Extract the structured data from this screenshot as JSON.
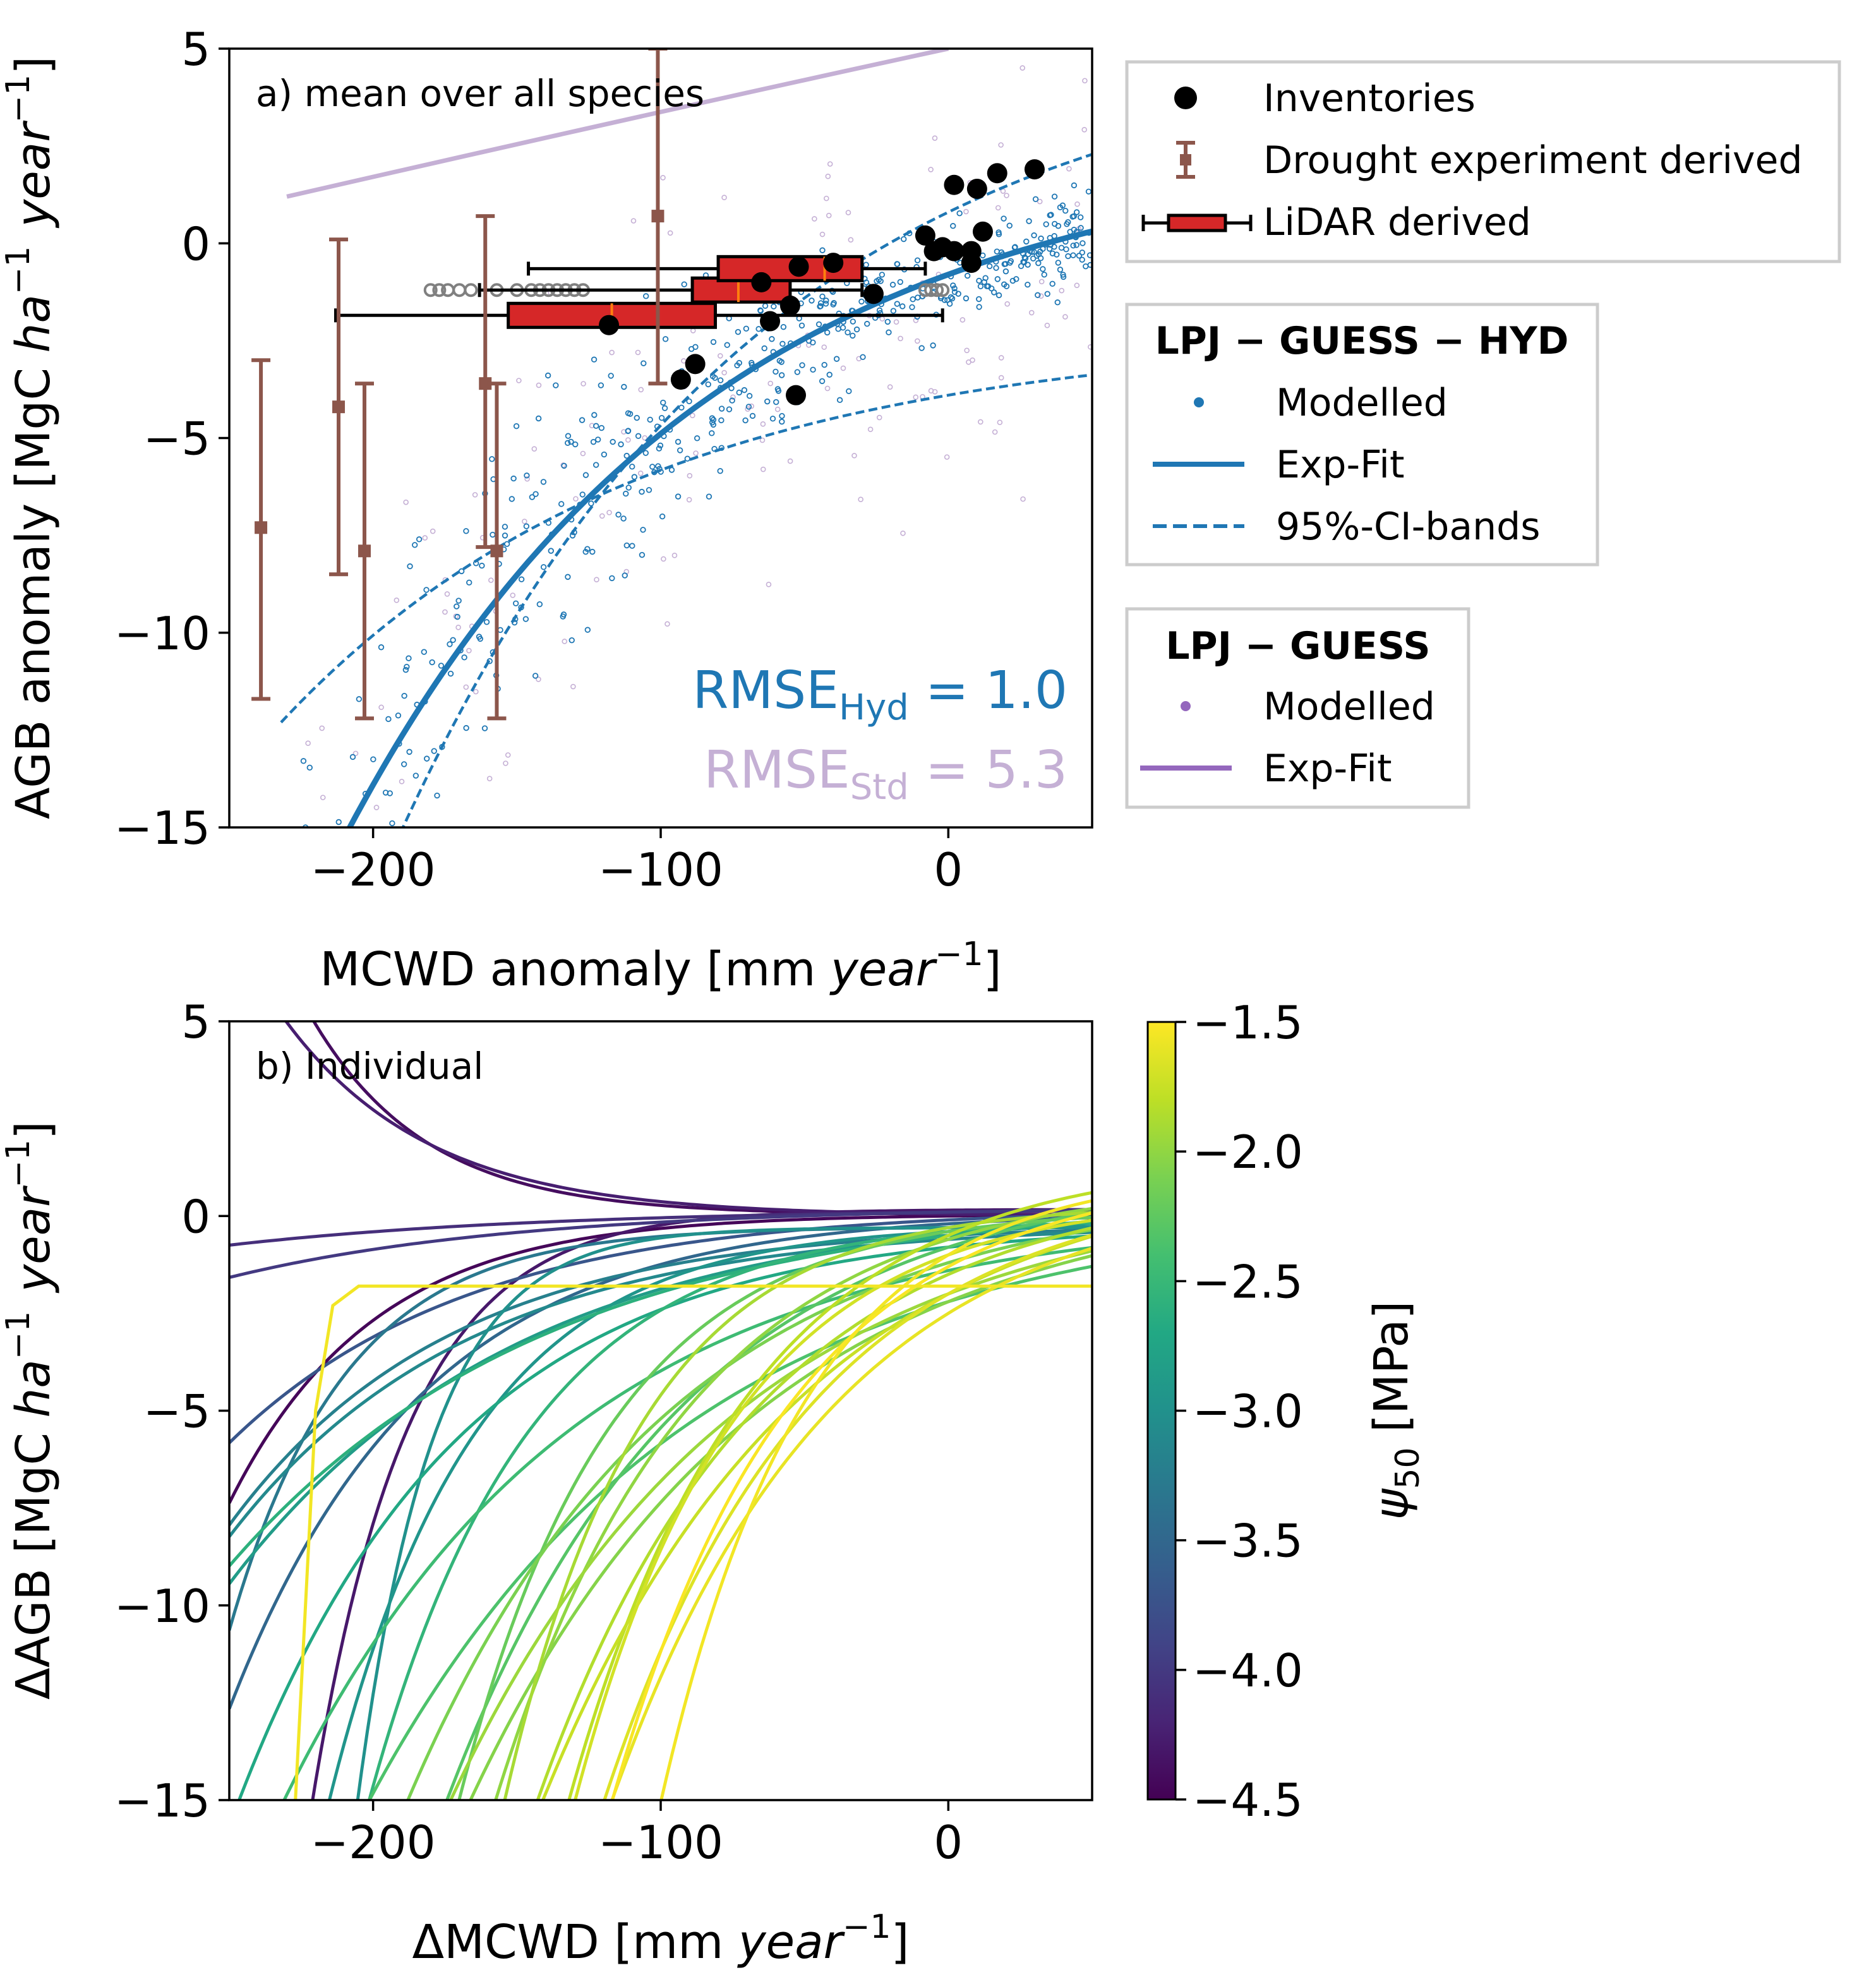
{
  "chart_data": [
    {
      "type": "scatter",
      "panel_title": "a)  mean over all species",
      "xlabel_main": "MCWD anomaly [mm ",
      "xlabel_italic": "year",
      "xlabel_sup": "−1",
      "xlabel_end": "]",
      "ylabel_main": "AGB anomaly [MgC ",
      "ylabel_italic": "ha",
      "ylabel_sup": "−1",
      "ylabel_italic2": "year",
      "ylabel_sup2": "−1",
      "ylabel_end": "]",
      "xlim": [
        -250,
        50
      ],
      "ylim": [
        -15,
        5
      ],
      "xticks": [
        "−200",
        "−100",
        "0"
      ],
      "yticks": [
        "5",
        "0",
        "−5",
        "−10",
        "−15"
      ],
      "legend_position": "right outside",
      "inventories": [
        [
          -118,
          -2.1
        ],
        [
          -93,
          -3.5
        ],
        [
          -88,
          -3.1
        ],
        [
          -65,
          -1.0
        ],
        [
          -62,
          -2.0
        ],
        [
          -55,
          -1.6
        ],
        [
          -53,
          -3.9
        ],
        [
          -52,
          -0.6
        ],
        [
          -40,
          -0.5
        ],
        [
          -26,
          -1.3
        ],
        [
          -8,
          0.2
        ],
        [
          -5,
          -0.2
        ],
        [
          -2,
          -0.1
        ],
        [
          2,
          1.5
        ],
        [
          2,
          -0.2
        ],
        [
          8,
          -0.2
        ],
        [
          8,
          -0.5
        ],
        [
          10,
          1.4
        ],
        [
          12,
          0.3
        ],
        [
          17,
          1.8
        ],
        [
          30,
          1.9
        ]
      ],
      "drought_experiments": [
        {
          "x": -239,
          "mean": -7.3,
          "low": -11.7,
          "high": -3.0
        },
        {
          "x": -212,
          "mean": -4.2,
          "low": -8.5,
          "high": 0.1
        },
        {
          "x": -203,
          "mean": -7.9,
          "low": -12.2,
          "high": -3.6
        },
        {
          "x": -161,
          "mean": -3.6,
          "low": -7.8,
          "high": 0.7
        },
        {
          "x": -157,
          "mean": -7.9,
          "low": -12.2,
          "high": -3.6
        },
        {
          "x": -101,
          "mean": 0.7,
          "low": -3.6,
          "high": 5.0
        }
      ],
      "lidar_boxes": [
        {
          "whisker_low": -213,
          "q1": -153,
          "median": -117,
          "q3": -81,
          "whisker_high": -2,
          "y": -1.85
        },
        {
          "whisker_low": -163,
          "q1": -89,
          "median": -73,
          "q3": -55,
          "whisker_high": -30,
          "y": -1.2
        },
        {
          "whisker_low": -146,
          "q1": -80,
          "median": -43,
          "q3": -30,
          "whisker_high": -8,
          "y": -0.65
        }
      ],
      "lidar_outliers": [
        [
          -180,
          -1.2
        ],
        [
          -177,
          -1.2
        ],
        [
          -174,
          -1.2
        ],
        [
          -170,
          -1.2
        ],
        [
          -166,
          -1.2
        ],
        [
          -157,
          -1.2
        ],
        [
          -150,
          -1.2
        ],
        [
          -145,
          -1.2
        ],
        [
          -142,
          -1.2
        ],
        [
          -139,
          -1.2
        ],
        [
          -136,
          -1.2
        ],
        [
          -133,
          -1.2
        ],
        [
          -130,
          -1.2
        ],
        [
          -127,
          -1.2
        ],
        [
          -8,
          -1.2
        ],
        [
          -6,
          -1.2
        ],
        [
          -4,
          -1.2
        ],
        [
          -2,
          -1.2
        ]
      ],
      "series": [
        {
          "name": "Exp-Fit",
          "model": "LPJ−GUESS−HYD",
          "a": 2.55,
          "b": -0.00935,
          "c": -2.25,
          "x_range": [
            -232,
            50
          ],
          "color": "#1f77b4",
          "style": "solid"
        },
        {
          "name": "95%-CI-bands",
          "model": "LPJ−GUESS−HYD",
          "x_range": [
            -232,
            50
          ],
          "upper": {
            "a": 3.5,
            "b": -0.008,
            "c": 1.2
          },
          "lower": {
            "a": 2.0,
            "b": -0.0085,
            "c": -5.1
          },
          "color": "#1f77b4",
          "style": "dashed"
        },
        {
          "name": "Exp-Fit",
          "model": "LPJ−GUESS",
          "x": [
            -230,
            -100,
            0
          ],
          "y": [
            1.2,
            3.5,
            5.0
          ],
          "color": "#9467bd",
          "style": "solid"
        }
      ],
      "rmse_hyd_label": "RMSE",
      "rmse_hyd_sub": "Hyd",
      "rmse_hyd_value": " = 1.0",
      "rmse_std_label": "RMSE",
      "rmse_std_sub": "Std",
      "rmse_std_value": " = 5.3"
    },
    {
      "type": "line",
      "panel_title": "b)  Individual",
      "xlabel_main": "ΔMCWD [mm ",
      "xlabel_italic": "year",
      "xlabel_sup": "−1",
      "xlabel_end": "]",
      "ylabel_main": "ΔAGB [MgC ",
      "ylabel_italic": "ha",
      "ylabel_sup": "−1",
      "ylabel_italic2": "year",
      "ylabel_sup2": "−1",
      "ylabel_end": "]",
      "xlim": [
        -250,
        50
      ],
      "ylim": [
        -15,
        5
      ],
      "xticks": [
        "−200",
        "−100",
        "0"
      ],
      "yticks": [
        "5",
        "0",
        "−5",
        "−10",
        "−15"
      ],
      "colorbar": {
        "label": "ψ",
        "label_sub": "50",
        "label_unit": " [MPa]",
        "range": [
          -4.5,
          -1.5
        ],
        "ticks": [
          "−1.5",
          "−2.0",
          "−2.5",
          "−3.0",
          "−3.5",
          "−4.0",
          "−4.5"
        ],
        "colormap": "viridis"
      },
      "curves": [
        {
          "psi50": -4.45,
          "a": 0.05,
          "b": -0.02,
          "c": 0.0
        },
        {
          "psi50": -4.4,
          "a": -0.02,
          "b": -0.025,
          "c": 0.05
        },
        {
          "psi50": -4.3,
          "a": 0.02,
          "b": -0.03,
          "c": 0.15
        },
        {
          "psi50": -4.25,
          "a": -0.05,
          "b": -0.02,
          "c": 0.05
        },
        {
          "psi50": -4.1,
          "a": 0.1,
          "b": -0.009,
          "c": 0.1
        },
        {
          "psi50": -4.0,
          "a": 0.15,
          "b": -0.01,
          "c": 0.1
        },
        {
          "psi50": -3.7,
          "a": 0.3,
          "b": -0.012,
          "c": -0.1
        },
        {
          "psi50": -3.5,
          "a": 0.3,
          "b": -0.015,
          "c": -0.2
        },
        {
          "psi50": -3.3,
          "a": 0.02,
          "b": -0.025,
          "c": -0.3
        },
        {
          "psi50": -3.2,
          "a": 0.3,
          "b": -0.013,
          "c": -0.5
        },
        {
          "psi50": -3.1,
          "a": 0.4,
          "b": -0.012,
          "c": -0.6
        },
        {
          "psi50": -3.0,
          "a": 0.006,
          "b": -0.038,
          "c": -0.3
        },
        {
          "psi50": -2.95,
          "a": 0.2,
          "b": -0.02,
          "c": -0.4
        },
        {
          "psi50": -2.85,
          "a": 0.8,
          "b": -0.01,
          "c": -0.5
        },
        {
          "psi50": -2.7,
          "a": 0.6,
          "b": -0.013,
          "c": -0.8
        },
        {
          "psi50": -2.6,
          "a": 1.0,
          "b": -0.009,
          "c": -0.5
        },
        {
          "psi50": -2.55,
          "a": 0.4,
          "b": -0.018,
          "c": -0.4
        },
        {
          "psi50": -2.45,
          "a": 1.5,
          "b": -0.01,
          "c": -1.4
        },
        {
          "psi50": -2.35,
          "a": 2.5,
          "b": -0.009,
          "c": -2.2
        },
        {
          "psi50": -2.3,
          "a": 2.0,
          "b": -0.012,
          "c": -0.8
        },
        {
          "psi50": -2.2,
          "a": 0.6,
          "b": -0.019,
          "c": -0.4
        },
        {
          "psi50": -2.1,
          "a": 2.0,
          "b": -0.011,
          "c": -1.2
        },
        {
          "psi50": -2.05,
          "a": 3.0,
          "b": -0.01,
          "c": -2.2
        },
        {
          "psi50": -2.0,
          "a": 1.5,
          "b": -0.015,
          "c": -0.6
        },
        {
          "psi50": -1.95,
          "a": 2.8,
          "b": -0.01,
          "c": -2.0
        },
        {
          "psi50": -1.9,
          "a": 0.6,
          "b": -0.021,
          "c": -0.3
        },
        {
          "psi50": -1.85,
          "a": 2.5,
          "b": -0.013,
          "c": -1.5
        },
        {
          "psi50": -1.8,
          "a": 2.0,
          "b": -0.016,
          "c": -0.5
        },
        {
          "psi50": -1.75,
          "a": 3.5,
          "b": -0.011,
          "c": -2.0
        },
        {
          "psi50": -1.7,
          "a": 1.5,
          "b": -0.018,
          "c": -1.0
        },
        {
          "psi50": -1.65,
          "a": 3.0,
          "b": -0.014,
          "c": -2.0
        },
        {
          "psi50": -1.6,
          "a": 3.5,
          "b": -0.013,
          "c": -2.5
        },
        {
          "psi50": -1.55,
          "a": 2.2,
          "b": -0.02,
          "c": -1.0
        },
        {
          "psi50": -1.52,
          "a": 2.5,
          "b": -0.016,
          "c": -1.3
        }
      ],
      "plateau_curve": {
        "psi50": -1.55,
        "points": [
          [
            -227,
            -15
          ],
          [
            -220,
            -5
          ],
          [
            -214,
            -2.3
          ],
          [
            -205,
            -1.8
          ],
          [
            50,
            -1.8
          ]
        ]
      }
    }
  ],
  "legend_a": {
    "inventories": "Inventories",
    "drought": "Drought experiment derived",
    "lidar": "LiDAR derived"
  },
  "legend_hyd": {
    "title": "LPJ − GUESS − HYD",
    "modelled": "Modelled",
    "expfit": "Exp-Fit",
    "ci": "95%-CI-bands"
  },
  "legend_std": {
    "title": "LPJ − GUESS",
    "modelled": "Modelled",
    "expfit": "Exp-Fit"
  },
  "colors": {
    "hyd": "#1f77b4",
    "std": "#9467bd",
    "std_light": "#c5b0d5",
    "drought": "#8c564b",
    "lidar": "#d62728",
    "median": "#ff7f0e",
    "outlier": "#808080"
  }
}
